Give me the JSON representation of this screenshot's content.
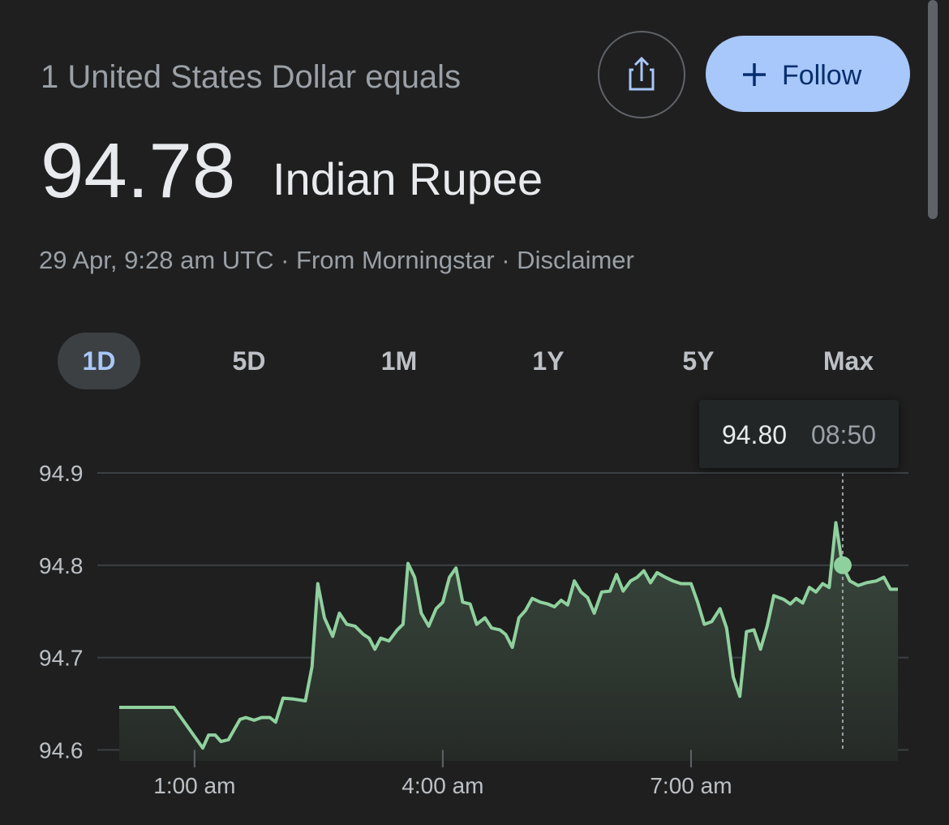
{
  "header": {
    "intro": "1 United States Dollar equals",
    "rate": "94.78",
    "currency": "Indian Rupee",
    "meta": "29 Apr, 9:28 am UTC · From Morningstar · Disclaimer",
    "follow": "Follow"
  },
  "tabs": [
    "1D",
    "5D",
    "1M",
    "1Y",
    "5Y",
    "Max"
  ],
  "chart_data": {
    "type": "line",
    "x": [
      0.09,
      0.75,
      1.1,
      1.17,
      1.25,
      1.32,
      1.41,
      1.55,
      1.62,
      1.72,
      1.81,
      1.91,
      1.98,
      2.07,
      2.2,
      2.34,
      2.42,
      2.49,
      2.57,
      2.67,
      2.75,
      2.84,
      2.94,
      3.04,
      3.11,
      3.18,
      3.25,
      3.35,
      3.45,
      3.52,
      3.58,
      3.66,
      3.74,
      3.83,
      3.92,
      4.0,
      4.08,
      4.16,
      4.24,
      4.33,
      4.41,
      4.51,
      4.59,
      4.69,
      4.76,
      4.84,
      4.92,
      5.0,
      5.08,
      5.18,
      5.27,
      5.35,
      5.43,
      5.51,
      5.59,
      5.67,
      5.75,
      5.83,
      5.92,
      6.02,
      6.1,
      6.18,
      6.27,
      6.35,
      6.43,
      6.51,
      6.59,
      6.69,
      6.78,
      6.88,
      7.0,
      7.08,
      7.16,
      7.25,
      7.35,
      7.43,
      7.51,
      7.59,
      7.67,
      7.76,
      7.84,
      7.92,
      8.0,
      8.12,
      8.2,
      8.27,
      8.35,
      8.43,
      8.51,
      8.59,
      8.67,
      8.75,
      8.83,
      8.92,
      9.02,
      9.12,
      9.24,
      9.33,
      9.41,
      9.5
    ],
    "values": [
      94.646,
      94.646,
      94.602,
      94.616,
      94.616,
      94.609,
      94.611,
      94.633,
      94.635,
      94.632,
      94.635,
      94.635,
      94.63,
      94.656,
      94.655,
      94.653,
      94.69,
      94.78,
      94.743,
      94.723,
      94.748,
      94.736,
      94.734,
      94.725,
      94.721,
      94.709,
      94.721,
      94.718,
      94.73,
      94.736,
      94.802,
      94.787,
      94.748,
      94.734,
      94.753,
      94.76,
      94.787,
      94.797,
      94.76,
      94.758,
      94.736,
      94.743,
      94.732,
      94.73,
      94.725,
      94.711,
      94.743,
      94.751,
      94.764,
      94.76,
      94.758,
      94.755,
      94.762,
      94.757,
      94.783,
      94.771,
      94.765,
      94.748,
      94.771,
      94.772,
      94.79,
      94.772,
      94.783,
      94.787,
      94.794,
      94.781,
      94.792,
      94.787,
      94.783,
      94.78,
      94.78,
      94.76,
      94.736,
      94.739,
      94.753,
      94.732,
      94.679,
      94.658,
      94.728,
      94.73,
      94.709,
      94.734,
      94.767,
      94.763,
      94.758,
      94.764,
      94.759,
      94.776,
      94.771,
      94.78,
      94.776,
      94.846,
      94.8,
      94.783,
      94.778,
      94.781,
      94.783,
      94.787,
      94.774,
      94.774
    ],
    "color": "#8fd19e",
    "xlim": [
      0.09,
      9.5
    ],
    "xticks": [
      {
        "value": 1,
        "label": "1:00 am"
      },
      {
        "value": 4,
        "label": "4:00 am"
      },
      {
        "value": 7,
        "label": "7:00 am"
      }
    ],
    "ylim": [
      94.588,
      94.9
    ],
    "yticks": [
      94.6,
      94.7,
      94.8,
      94.9
    ],
    "grid": true,
    "highlight": {
      "x": 8.833,
      "value": 94.8,
      "label": "94.80",
      "time": "08:50"
    }
  }
}
